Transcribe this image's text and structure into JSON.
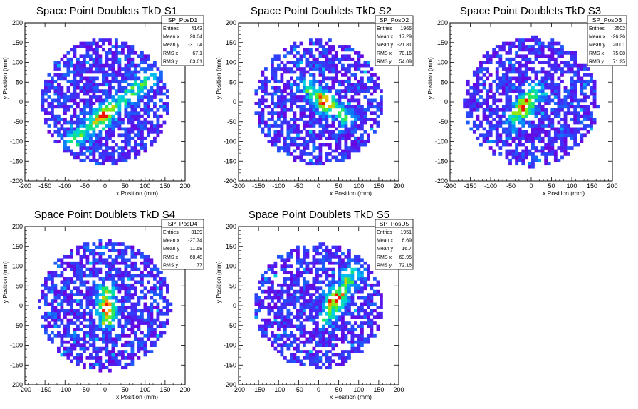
{
  "chart_data": [
    {
      "type": "heatmap",
      "title": "Space Point Doublets TkD S1",
      "xlabel": "x Position (mm)",
      "ylabel": "y Position (mm)",
      "xlim": [
        -200,
        200
      ],
      "ylim": [
        -200,
        200
      ],
      "xticks": [
        "-200",
        "-150",
        "-100",
        "-50",
        "0",
        "50",
        "100",
        "150",
        "200"
      ],
      "yticks": [
        "-200",
        "-150",
        "-100",
        "-50",
        "0",
        "50",
        "100",
        "150",
        "200"
      ],
      "acceptance_radius_mm": 160,
      "hotspot": {
        "shape": "diagonal band",
        "from": [
          -80,
          -100
        ],
        "to": [
          110,
          60
        ],
        "peak": [
          -5,
          -35
        ]
      },
      "stats": {
        "name": "SP_PosD1",
        "rows": [
          [
            "Entries",
            "4143"
          ],
          [
            "Mean x",
            "20.04"
          ],
          [
            "Mean y",
            "-31.04"
          ],
          [
            "RMS x",
            "67.1"
          ],
          [
            "RMS y",
            "63.61"
          ]
        ]
      }
    },
    {
      "type": "heatmap",
      "title": "Space Point Doublets TkD S2",
      "xlabel": "x Position (mm)",
      "ylabel": "y Position (mm)",
      "xlim": [
        -200,
        200
      ],
      "ylim": [
        -200,
        200
      ],
      "xticks": [
        "-200",
        "-150",
        "-100",
        "-50",
        "0",
        "50",
        "100",
        "150",
        "200"
      ],
      "yticks": [
        "-200",
        "-150",
        "-100",
        "-50",
        "0",
        "50",
        "100",
        "150",
        "200"
      ],
      "acceptance_radius_mm": 160,
      "hotspot": {
        "shape": "diagonal band",
        "from": [
          -30,
          40
        ],
        "to": [
          70,
          -40
        ],
        "peak": [
          15,
          -5
        ]
      },
      "stats": {
        "name": "SP_PosD2",
        "rows": [
          [
            "Entries",
            "1965"
          ],
          [
            "Mean x",
            "17.29"
          ],
          [
            "Mean y",
            "-21.81"
          ],
          [
            "RMS x",
            "70.16"
          ],
          [
            "RMS y",
            "54.09"
          ]
        ]
      }
    },
    {
      "type": "heatmap",
      "title": "Space Point Doublets TkD S3",
      "xlabel": "x Position (mm)",
      "ylabel": "y Position (mm)",
      "xlim": [
        -200,
        200
      ],
      "ylim": [
        -200,
        200
      ],
      "xticks": [
        "-200",
        "-150",
        "-100",
        "-50",
        "0",
        "50",
        "100",
        "150",
        "200"
      ],
      "yticks": [
        "-200",
        "-150",
        "-100",
        "-50",
        "0",
        "50",
        "100",
        "150",
        "200"
      ],
      "acceptance_radius_mm": 165,
      "hotspot": {
        "shape": "diagonal band",
        "from": [
          -40,
          -40
        ],
        "to": [
          10,
          30
        ],
        "peak": [
          -15,
          -10
        ]
      },
      "stats": {
        "name": "SP_PosD3",
        "rows": [
          [
            "Entries",
            "2502"
          ],
          [
            "Mean x",
            "-26.26"
          ],
          [
            "Mean y",
            "20.01"
          ],
          [
            "RMS x",
            "75.08"
          ],
          [
            "RMS y",
            "71.25"
          ]
        ]
      }
    },
    {
      "type": "heatmap",
      "title": "Space Point Doublets TkD S4",
      "xlabel": "x Position (mm)",
      "ylabel": "y Position (mm)",
      "xlim": [
        -200,
        200
      ],
      "ylim": [
        -200,
        200
      ],
      "xticks": [
        "-200",
        "-150",
        "-100",
        "-50",
        "0",
        "50",
        "100",
        "150",
        "200"
      ],
      "yticks": [
        "-200",
        "-150",
        "-100",
        "-50",
        "0",
        "50",
        "100",
        "150",
        "200"
      ],
      "acceptance_radius_mm": 165,
      "hotspot": {
        "shape": "vertical streak",
        "from": [
          5,
          -40
        ],
        "to": [
          5,
          40
        ],
        "peak": [
          5,
          -5
        ]
      },
      "stats": {
        "name": "SP_PosD4",
        "rows": [
          [
            "Entries",
            "3139"
          ],
          [
            "Mean x",
            "-27.74"
          ],
          [
            "Mean y",
            "11.68"
          ],
          [
            "RMS x",
            "68.48"
          ],
          [
            "RMS y",
            "77"
          ]
        ]
      }
    },
    {
      "type": "heatmap",
      "title": "Space Point Doublets TkD S5",
      "xlabel": "x Position (mm)",
      "ylabel": "y Position (mm)",
      "xlim": [
        -200,
        200
      ],
      "ylim": [
        -200,
        200
      ],
      "xticks": [
        "-200",
        "-150",
        "-100",
        "-50",
        "0",
        "50",
        "100",
        "150",
        "200"
      ],
      "yticks": [
        "-200",
        "-150",
        "-100",
        "-50",
        "0",
        "50",
        "100",
        "150",
        "200"
      ],
      "acceptance_radius_mm": 160,
      "hotspot": {
        "shape": "diffuse band",
        "from": [
          20,
          -30
        ],
        "to": [
          90,
          90
        ],
        "peak": [
          40,
          20
        ]
      },
      "stats": {
        "name": "SP_PosD5",
        "rows": [
          [
            "Entries",
            "1951"
          ],
          [
            "Mean x",
            "6.69"
          ],
          [
            "Mean y",
            "16.7"
          ],
          [
            "RMS x",
            "63.95"
          ],
          [
            "RMS y",
            "72.16"
          ]
        ]
      }
    }
  ]
}
